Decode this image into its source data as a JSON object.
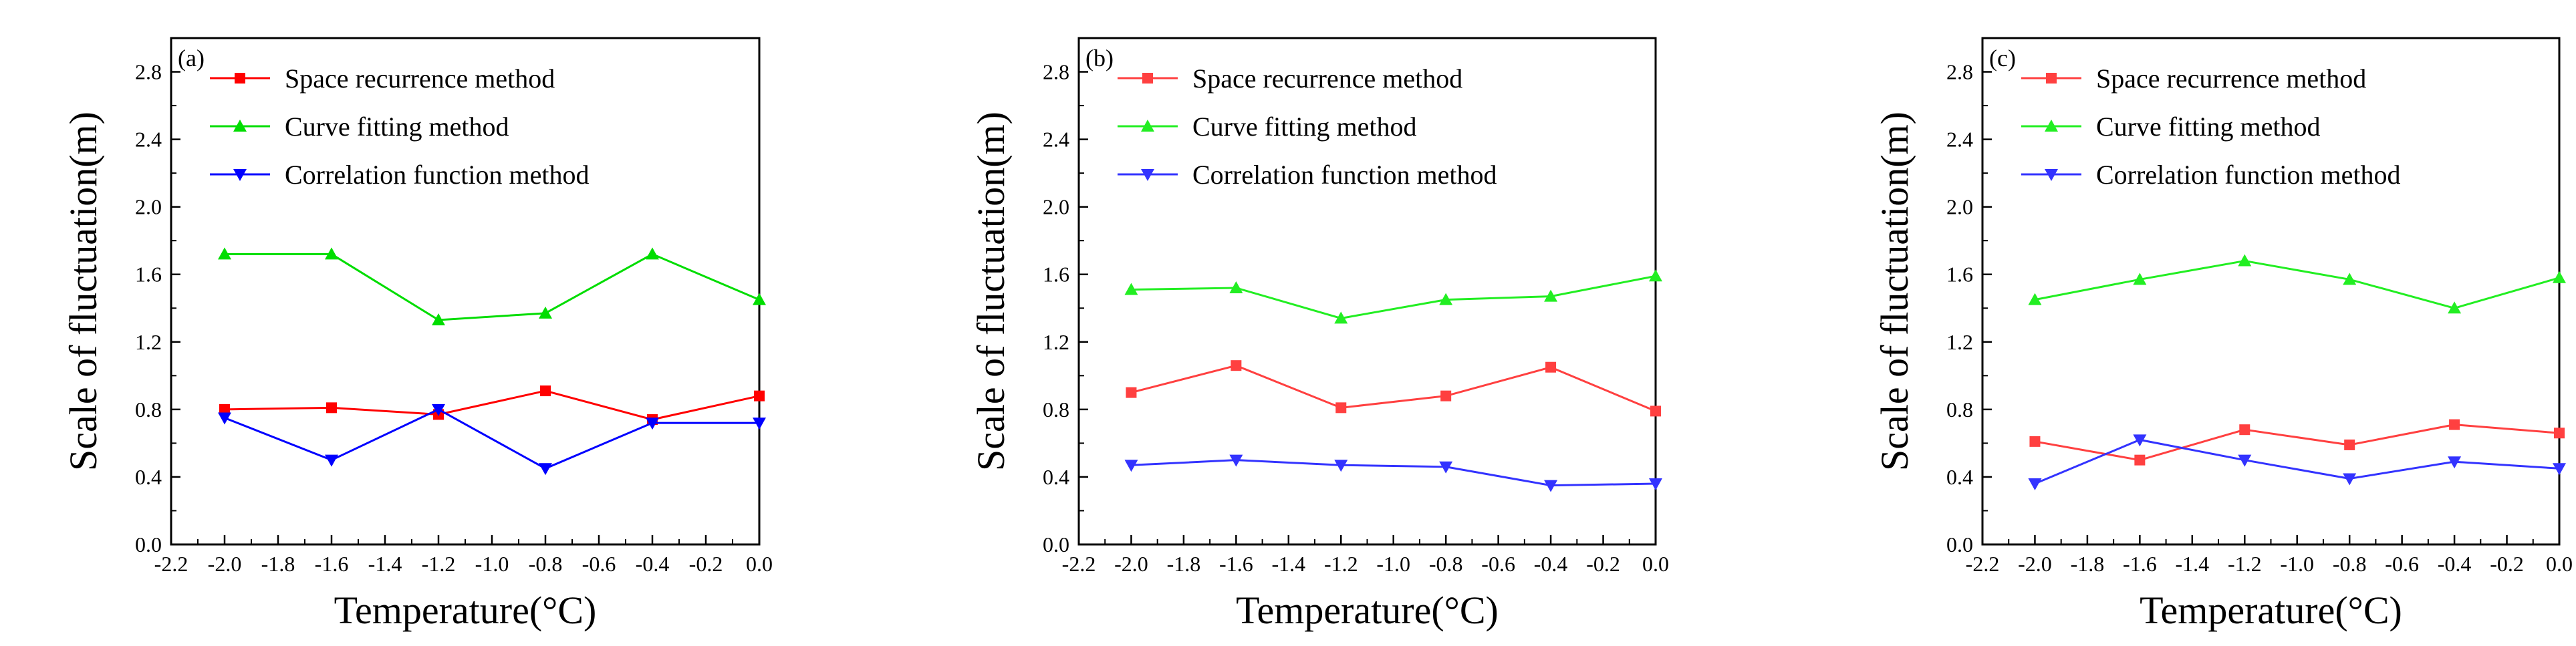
{
  "chart_data": [
    {
      "type": "line",
      "panel_label": "(a)",
      "xlabel": "Temperature(°C)",
      "ylabel": "Scale of fluctuation(m)",
      "xlim": [
        -2.2,
        0.0
      ],
      "ylim": [
        0.0,
        3.0
      ],
      "xticks": [
        "-2.2",
        "-2.0",
        "-1.8",
        "-1.6",
        "-1.4",
        "-1.2",
        "-1.0",
        "-0.8",
        "-0.6",
        "-0.4",
        "-0.2",
        "0.0"
      ],
      "yticks": [
        "0.0",
        "0.4",
        "0.8",
        "1.2",
        "1.6",
        "2.0",
        "2.4",
        "2.8"
      ],
      "legend_position": "top-left",
      "x": [
        -2.0,
        -1.6,
        -1.2,
        -0.8,
        -0.4,
        0.0
      ],
      "series": [
        {
          "name": "Space recurrence method",
          "color": "#ff0000",
          "marker": "square",
          "values": [
            0.8,
            0.81,
            0.77,
            0.91,
            0.74,
            0.88
          ]
        },
        {
          "name": "Curve fitting method",
          "color": "#00dd00",
          "marker": "triangle-up",
          "values": [
            1.72,
            1.72,
            1.33,
            1.37,
            1.72,
            1.45
          ]
        },
        {
          "name": "Correlation function method",
          "color": "#0000ff",
          "marker": "triangle-down",
          "values": [
            0.75,
            0.5,
            0.8,
            0.45,
            0.72,
            0.72
          ]
        }
      ]
    },
    {
      "type": "line",
      "panel_label": "(b)",
      "xlabel": "Temperature(°C)",
      "ylabel": "Scale of fluctuation(m)",
      "xlim": [
        -2.2,
        0.0
      ],
      "ylim": [
        0.0,
        3.0
      ],
      "xticks": [
        "-2.2",
        "-2.0",
        "-1.8",
        "-1.6",
        "-1.4",
        "-1.2",
        "-1.0",
        "-0.8",
        "-0.6",
        "-0.4",
        "-0.2",
        "0.0"
      ],
      "yticks": [
        "0.0",
        "0.4",
        "0.8",
        "1.2",
        "1.6",
        "2.0",
        "2.4",
        "2.8"
      ],
      "legend_position": "top-left",
      "x": [
        -2.0,
        -1.6,
        -1.2,
        -0.8,
        -0.4,
        0.0
      ],
      "series": [
        {
          "name": "Space recurrence method",
          "color": "#ff4040",
          "marker": "square",
          "values": [
            0.9,
            1.06,
            0.81,
            0.88,
            1.05,
            0.79
          ]
        },
        {
          "name": "Curve fitting method",
          "color": "#22ee22",
          "marker": "triangle-up",
          "values": [
            1.51,
            1.52,
            1.34,
            1.45,
            1.47,
            1.59
          ]
        },
        {
          "name": "Correlation function method",
          "color": "#3333ff",
          "marker": "triangle-down",
          "values": [
            0.47,
            0.5,
            0.47,
            0.46,
            0.35,
            0.36
          ]
        }
      ]
    },
    {
      "type": "line",
      "panel_label": "(c)",
      "xlabel": "Temperature(°C)",
      "ylabel": "Scale of fluctuation(m)",
      "xlim": [
        -2.2,
        0.0
      ],
      "ylim": [
        0.0,
        3.0
      ],
      "xticks": [
        "-2.2",
        "-2.0",
        "-1.8",
        "-1.6",
        "-1.4",
        "-1.2",
        "-1.0",
        "-0.8",
        "-0.6",
        "-0.4",
        "-0.2",
        "0.0"
      ],
      "yticks": [
        "0.0",
        "0.4",
        "0.8",
        "1.2",
        "1.6",
        "2.0",
        "2.4",
        "2.8"
      ],
      "legend_position": "top-left",
      "x": [
        -2.0,
        -1.6,
        -1.2,
        -0.8,
        -0.4,
        0.0
      ],
      "series": [
        {
          "name": "Space recurrence method",
          "color": "#ff4040",
          "marker": "square",
          "values": [
            0.61,
            0.5,
            0.68,
            0.59,
            0.71,
            0.66
          ]
        },
        {
          "name": "Curve fitting method",
          "color": "#22ee22",
          "marker": "triangle-up",
          "values": [
            1.45,
            1.57,
            1.68,
            1.57,
            1.4,
            1.58
          ]
        },
        {
          "name": "Correlation function method",
          "color": "#3333ff",
          "marker": "triangle-down",
          "values": [
            0.36,
            0.62,
            0.5,
            0.39,
            0.49,
            0.45
          ]
        }
      ]
    }
  ]
}
